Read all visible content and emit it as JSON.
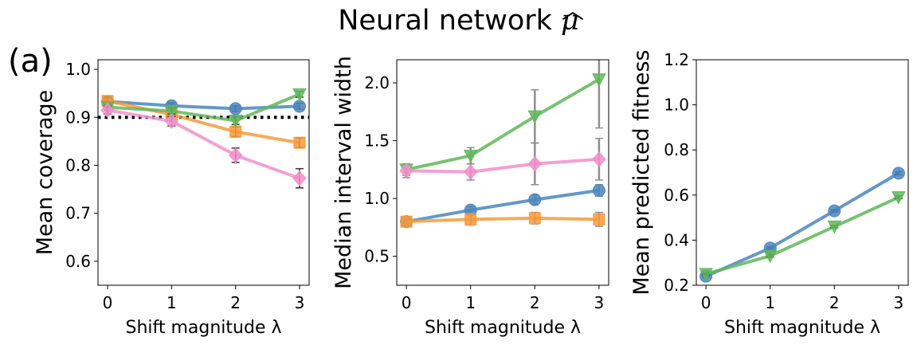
{
  "figure": {
    "title": "Neural network ",
    "title_symbol": "μ",
    "panel_label": "(a)"
  },
  "colors": {
    "blue": "#4a86be",
    "orange": "#f89a3a",
    "green": "#5fb75a",
    "pink": "#f28fcb",
    "black": "#000000",
    "errorbar": "#333333",
    "errorbar_grey": "#8e8e8e"
  },
  "chart_data": [
    {
      "type": "line",
      "xlabel": "Shift magnitude λ",
      "ylabel": "Mean coverage",
      "xlim": [
        -0.15,
        3.15
      ],
      "ylim": [
        0.55,
        1.02
      ],
      "xticks": [
        0,
        1,
        2,
        3
      ],
      "xtick_labels": [
        "0",
        "1",
        "2",
        "3"
      ],
      "yticks": [
        0.6,
        0.7,
        0.8,
        0.9,
        1.0
      ],
      "ytick_labels": [
        "0.6",
        "0.7",
        "0.8",
        "0.9",
        "1.0"
      ],
      "grid": false,
      "reference_line": {
        "y": 0.9,
        "style": "dotted",
        "color": "black"
      },
      "series": [
        {
          "color": "blue",
          "marker": "circle",
          "x": [
            0,
            1,
            2,
            3
          ],
          "y": [
            0.933,
            0.924,
            0.918,
            0.923
          ],
          "err": [
            0.006,
            0.006,
            0.006,
            0.006
          ]
        },
        {
          "color": "orange",
          "marker": "square",
          "x": [
            0,
            1,
            2,
            3
          ],
          "y": [
            0.934,
            0.906,
            0.87,
            0.847
          ],
          "err": [
            0.008,
            0.008,
            0.01,
            0.01
          ]
        },
        {
          "color": "green",
          "marker": "triangle-down",
          "x": [
            0,
            1,
            2,
            3
          ],
          "y": [
            0.921,
            0.913,
            0.893,
            0.948
          ],
          "err": [
            0.006,
            0.006,
            0.008,
            0.006
          ]
        },
        {
          "color": "pink",
          "marker": "diamond",
          "x": [
            0,
            1,
            2,
            3
          ],
          "y": [
            0.915,
            0.892,
            0.821,
            0.773
          ],
          "err": [
            0.008,
            0.01,
            0.015,
            0.02
          ]
        }
      ]
    },
    {
      "type": "line",
      "xlabel": "Shift magnitude λ",
      "ylabel": "Median interval width",
      "xlim": [
        -0.15,
        3.15
      ],
      "ylim": [
        0.25,
        2.2
      ],
      "xticks": [
        0,
        1,
        2,
        3
      ],
      "xtick_labels": [
        "0",
        "1",
        "2",
        "3"
      ],
      "yticks": [
        0.5,
        1.0,
        1.5,
        2.0
      ],
      "ytick_labels": [
        "0.5",
        "1.0",
        "1.5",
        "2.0"
      ],
      "grid": false,
      "series": [
        {
          "color": "blue",
          "marker": "circle",
          "x": [
            0,
            1,
            2,
            3
          ],
          "y": [
            0.8,
            0.9,
            0.99,
            1.07
          ],
          "err": [
            0.02,
            0.03,
            0.04,
            0.05
          ]
        },
        {
          "color": "orange",
          "marker": "square",
          "x": [
            0,
            1,
            2,
            3
          ],
          "y": [
            0.8,
            0.82,
            0.83,
            0.82
          ],
          "err": [
            0.04,
            0.05,
            0.05,
            0.06
          ]
        },
        {
          "color": "green",
          "marker": "triangle-down",
          "x": [
            0,
            1,
            2,
            3
          ],
          "y": [
            1.25,
            1.37,
            1.71,
            2.03
          ],
          "err": [
            0.05,
            0.07,
            0.23,
            0.42
          ]
        },
        {
          "color": "pink",
          "marker": "diamond",
          "x": [
            0,
            1,
            2,
            3
          ],
          "y": [
            1.24,
            1.23,
            1.3,
            1.34
          ],
          "err": [
            0.06,
            0.07,
            0.18,
            0.18
          ]
        }
      ]
    },
    {
      "type": "line",
      "xlabel": "Shift magnitude λ",
      "ylabel": "Mean predicted fitness",
      "xlim": [
        -0.15,
        3.15
      ],
      "ylim": [
        0.2,
        1.2
      ],
      "xticks": [
        0,
        1,
        2,
        3
      ],
      "xtick_labels": [
        "0",
        "1",
        "2",
        "3"
      ],
      "yticks": [
        0.2,
        0.4,
        0.6,
        0.8,
        1.0,
        1.2
      ],
      "ytick_labels": [
        "0.2",
        "0.4",
        "0.6",
        "0.8",
        "1.0",
        "1.2"
      ],
      "grid": false,
      "series": [
        {
          "color": "blue",
          "marker": "circle",
          "x": [
            0,
            1,
            2,
            3
          ],
          "y": [
            0.24,
            0.365,
            0.53,
            0.697
          ],
          "err": [
            0.004,
            0.005,
            0.005,
            0.006
          ]
        },
        {
          "color": "green",
          "marker": "triangle-down",
          "x": [
            0,
            1,
            2,
            3
          ],
          "y": [
            0.25,
            0.33,
            0.46,
            0.59
          ],
          "err": [
            0.004,
            0.005,
            0.005,
            0.006
          ]
        }
      ]
    }
  ]
}
